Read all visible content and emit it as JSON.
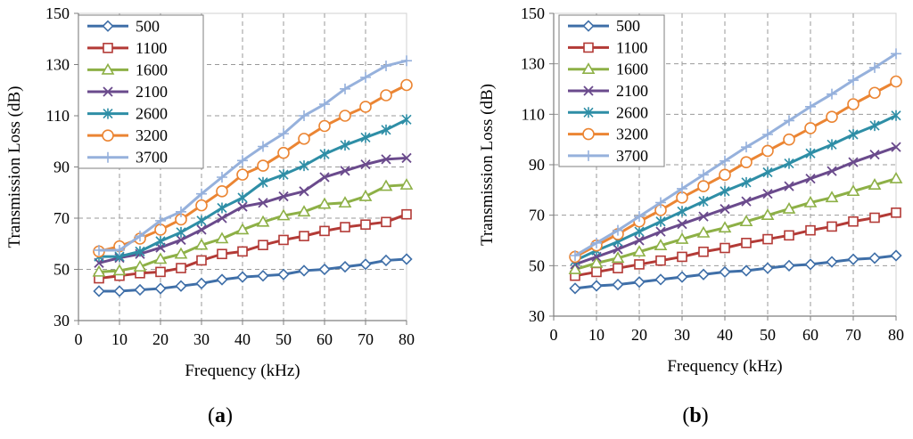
{
  "figure": {
    "panel_labels": [
      "(a)",
      "(b)"
    ]
  },
  "chart_data": [
    {
      "type": "line",
      "panel": "a",
      "title": "",
      "xlabel": "Frequency (kHz)",
      "ylabel": "Transmission Loss (dB)",
      "xlim": [
        0,
        80
      ],
      "ylim": [
        30,
        150
      ],
      "xticks": [
        0,
        10,
        20,
        30,
        40,
        50,
        60,
        70,
        80
      ],
      "yticks": [
        30,
        50,
        70,
        90,
        110,
        130,
        150
      ],
      "grid": true,
      "legend_position": "top-left",
      "x": [
        5,
        10,
        15,
        20,
        25,
        30,
        35,
        40,
        45,
        50,
        55,
        60,
        65,
        70,
        75,
        80
      ],
      "series": [
        {
          "name": "500",
          "color": "#3F6FA8",
          "marker": "diamond",
          "values": [
            41.5,
            41.5,
            42,
            42.5,
            43.5,
            44.5,
            46,
            47,
            47.5,
            48,
            49.5,
            50,
            51,
            52,
            53.5,
            54
          ]
        },
        {
          "name": "1100",
          "color": "#B33A36",
          "marker": "square",
          "values": [
            46.5,
            47.5,
            48.5,
            49,
            50.5,
            53.5,
            56,
            57,
            59.5,
            61.5,
            63,
            65,
            66.5,
            67.5,
            68.5,
            71.5
          ]
        },
        {
          "name": "1600",
          "color": "#8DB046",
          "marker": "triangle",
          "values": [
            49,
            49.5,
            51,
            54,
            56,
            59.5,
            62,
            65.5,
            68.5,
            71,
            72.5,
            75.5,
            76,
            78.5,
            82.5,
            83
          ]
        },
        {
          "name": "2100",
          "color": "#6A4A8C",
          "marker": "x",
          "values": [
            52.5,
            54.5,
            56,
            58.5,
            61.5,
            65.5,
            70,
            74.5,
            76,
            78.5,
            80.5,
            86,
            88.5,
            91,
            93,
            93.5
          ]
        },
        {
          "name": "2600",
          "color": "#2E8EA6",
          "marker": "star",
          "values": [
            55,
            55,
            57,
            61,
            64.5,
            69,
            74,
            78,
            84,
            87,
            90.5,
            95,
            98.5,
            101.5,
            104.5,
            108.5
          ]
        },
        {
          "name": "3200",
          "color": "#EB8533",
          "marker": "circle",
          "values": [
            57,
            59,
            62,
            65.5,
            69.5,
            75,
            80.5,
            87,
            90.5,
            95.5,
            101,
            106,
            110,
            113.5,
            118,
            122
          ]
        },
        {
          "name": "3700",
          "color": "#96B1DC",
          "marker": "plus",
          "values": [
            57.5,
            57.5,
            63,
            69,
            72.5,
            79.5,
            86,
            92.5,
            98,
            103,
            110,
            114.5,
            120.5,
            125,
            129.5,
            131.5
          ]
        }
      ]
    },
    {
      "type": "line",
      "panel": "b",
      "title": "",
      "xlabel": "Frequency (kHz)",
      "ylabel": "Transmission Loss (dB)",
      "xlim": [
        0,
        80
      ],
      "ylim": [
        30,
        150
      ],
      "xticks": [
        0,
        10,
        20,
        30,
        40,
        50,
        60,
        70,
        80
      ],
      "yticks": [
        30,
        50,
        70,
        90,
        110,
        130,
        150
      ],
      "grid": true,
      "legend_position": "top-left",
      "x": [
        5,
        10,
        15,
        20,
        25,
        30,
        35,
        40,
        45,
        50,
        55,
        60,
        65,
        70,
        75,
        80
      ],
      "series": [
        {
          "name": "500",
          "color": "#3F6FA8",
          "marker": "diamond",
          "values": [
            41,
            42,
            42.5,
            43.5,
            44.5,
            45.5,
            46.5,
            47.5,
            48,
            49,
            50,
            50.5,
            51.5,
            52.5,
            53,
            54
          ]
        },
        {
          "name": "1100",
          "color": "#B33A36",
          "marker": "square",
          "values": [
            46,
            47.5,
            49,
            50.5,
            52,
            53.5,
            55.5,
            57,
            59,
            60.5,
            62,
            64,
            65.5,
            67.5,
            69,
            71
          ]
        },
        {
          "name": "1600",
          "color": "#8DB046",
          "marker": "triangle",
          "values": [
            48.5,
            51,
            53,
            55.5,
            58,
            60.5,
            63,
            65,
            67.5,
            70,
            72.5,
            75,
            77,
            79.5,
            82,
            84.5
          ]
        },
        {
          "name": "2100",
          "color": "#6A4A8C",
          "marker": "x",
          "values": [
            50.5,
            53.5,
            56.5,
            60,
            63.5,
            66.5,
            69.5,
            72.5,
            75.5,
            78.5,
            81.5,
            84.5,
            87.5,
            91,
            94,
            97
          ]
        },
        {
          "name": "2600",
          "color": "#2E8EA6",
          "marker": "star",
          "values": [
            52,
            56,
            59.5,
            63.5,
            67.5,
            71.5,
            75.5,
            79.5,
            83,
            87,
            90.5,
            94.5,
            98,
            102,
            105.5,
            109.5
          ]
        },
        {
          "name": "3200",
          "color": "#EB8533",
          "marker": "circle",
          "values": [
            53.5,
            58,
            62.5,
            67.5,
            72,
            77,
            81.5,
            86,
            91,
            95.5,
            100,
            104.5,
            109,
            114,
            118.5,
            123
          ]
        },
        {
          "name": "3700",
          "color": "#96B1DC",
          "marker": "plus",
          "values": [
            54,
            59,
            64,
            69.5,
            75,
            80.5,
            86,
            91.5,
            97,
            102,
            107.5,
            113,
            118,
            123.5,
            128.5,
            134
          ]
        }
      ]
    }
  ]
}
